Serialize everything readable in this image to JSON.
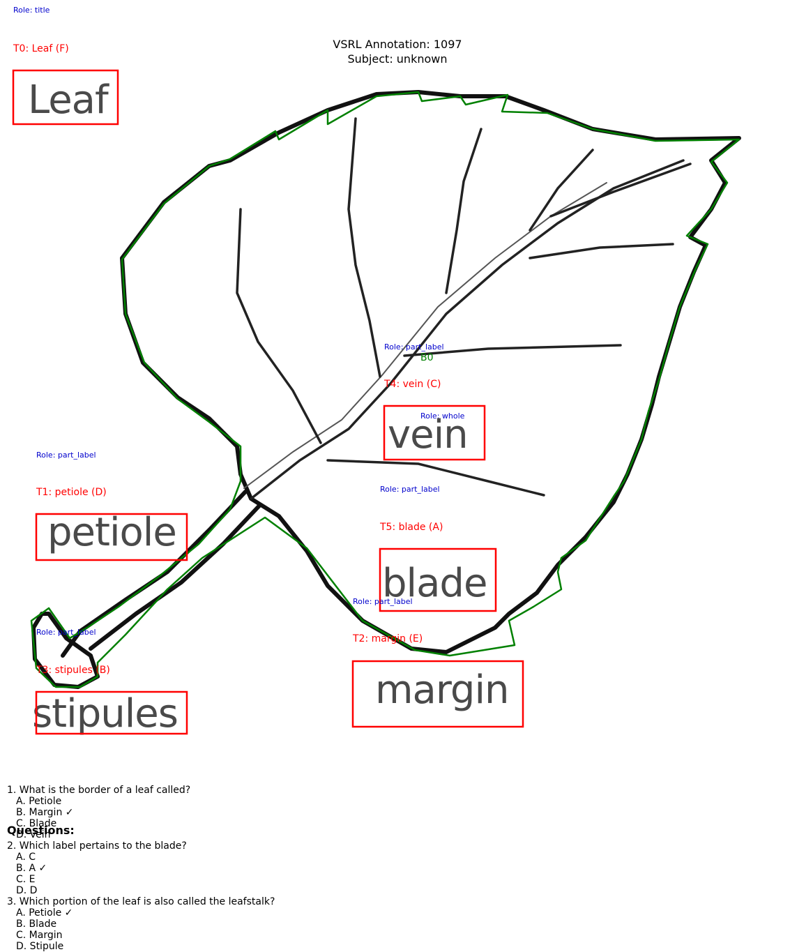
{
  "header": {
    "role_title": "Role: title",
    "title_line1": "VSRL Annotation: 1097",
    "title_line2": "Subject: unknown"
  },
  "labels": {
    "t0": {
      "tag": "T0: Leaf (F)",
      "word": "Leaf"
    },
    "t1": {
      "role": "Role: part_label",
      "tag": "T1: petiole (D)",
      "word": "petiole"
    },
    "t2": {
      "role": "Role: part_label",
      "tag": "T2: margin (E)",
      "word": "margin"
    },
    "t3": {
      "role": "Role: part_label",
      "tag": "T3: stipules (B)",
      "word": "stipules"
    },
    "t4": {
      "role": "Role: part_label",
      "tag": "T4: vein (C)",
      "word": "vein"
    },
    "t5": {
      "role": "Role: part_label",
      "tag": "T5: blade (A)",
      "word": "blade"
    },
    "b0": {
      "role": "Role: whole",
      "tag": "B0"
    }
  },
  "questions_heading": "Questions:",
  "questions": [
    {
      "text": "1. What is the border of a leaf called?",
      "options": [
        "A. Petiole",
        "B. Margin ✓",
        "C. Blade",
        "D. Vein"
      ]
    },
    {
      "text": "2. Which label pertains to the blade?",
      "options": [
        "A. C",
        "B. A ✓",
        "C. E",
        "D. D"
      ]
    },
    {
      "text": "3. Which portion of the leaf is also called the leafstalk?",
      "options": [
        "A. Petiole ✓",
        "B. Blade",
        "C. Margin",
        "D. Stipule"
      ]
    }
  ],
  "colors": {
    "box": "#ff0000",
    "polygon": "#008000",
    "role": "#0000cc"
  }
}
